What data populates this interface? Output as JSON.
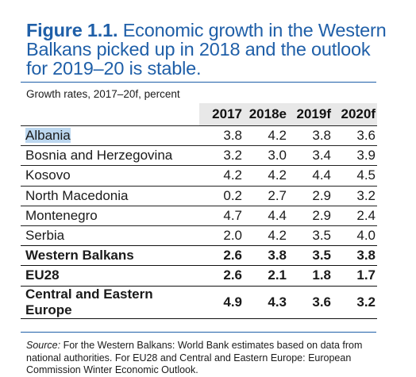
{
  "figure": {
    "label": "Figure 1.1.",
    "title": "Economic growth in the Western Balkans picked up in 2018 and the outlook for 2019–20 is stable."
  },
  "subtitle": "Growth rates, 2017–20f, percent",
  "table": {
    "columns": [
      "2017",
      "2018e",
      "2019f",
      "2020f"
    ],
    "rows": [
      {
        "name": "Albania",
        "values": [
          "3.8",
          "4.2",
          "3.8",
          "3.6"
        ]
      },
      {
        "name": "Bosnia and Herzegovina",
        "values": [
          "3.2",
          "3.0",
          "3.4",
          "3.9"
        ]
      },
      {
        "name": "Kosovo",
        "values": [
          "4.2",
          "4.2",
          "4.4",
          "4.5"
        ]
      },
      {
        "name": "North Macedonia",
        "values": [
          "0.2",
          "2.7",
          "2.9",
          "3.2"
        ]
      },
      {
        "name": "Montenegro",
        "values": [
          "4.7",
          "4.4",
          "2.9",
          "2.4"
        ]
      },
      {
        "name": "Serbia",
        "values": [
          "2.0",
          "4.2",
          "3.5",
          "4.0"
        ]
      },
      {
        "name": "Western Balkans",
        "values": [
          "2.6",
          "3.8",
          "3.5",
          "3.8"
        ]
      },
      {
        "name": "EU28",
        "values": [
          "2.6",
          "2.1",
          "1.8",
          "1.7"
        ]
      },
      {
        "name": "Central and Eastern Europe",
        "values": [
          "4.9",
          "4.3",
          "3.6",
          "3.2"
        ]
      }
    ]
  },
  "source": {
    "label": "Source:",
    "text": "For the Western Balkans: World Bank estimates based on data from national authorities. For EU28 and Central and Eastern Europe: European Commission Winter Economic Outlook."
  },
  "colors": {
    "title_blue": "#1f5fa8",
    "header_gray": "#e8e8e8",
    "selection_highlight": "#bcd7ef"
  }
}
